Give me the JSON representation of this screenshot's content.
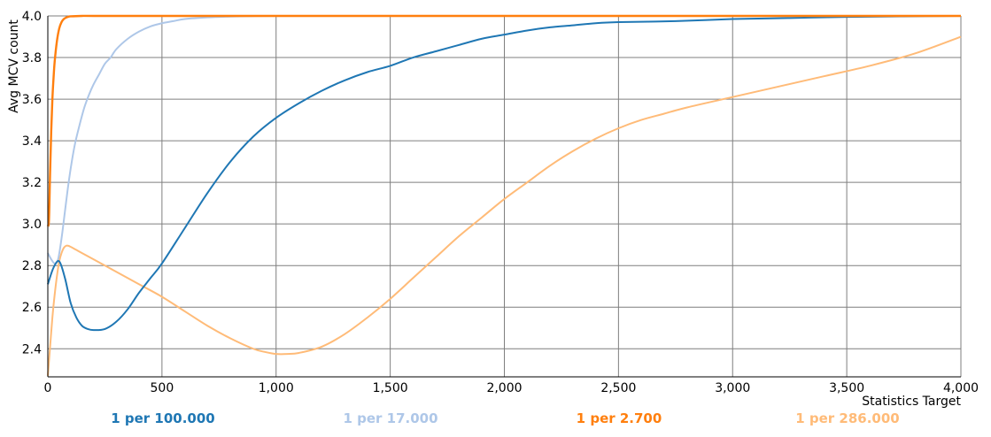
{
  "chart_data": {
    "type": "line",
    "xlabel": "Statistics Target",
    "ylabel": "Avg MCV count",
    "xlim": [
      0,
      4000
    ],
    "ylim": [
      2.265,
      4.0
    ],
    "x_ticks": [
      0,
      500,
      1000,
      1500,
      2000,
      2500,
      3000,
      3500,
      4000
    ],
    "x_tick_labels": [
      "0",
      "500",
      "1,000",
      "1,500",
      "2,000",
      "2,500",
      "3,000",
      "3,500",
      "4,000"
    ],
    "y_ticks": [
      2.4,
      2.6,
      2.8,
      3.0,
      3.2,
      3.4,
      3.6,
      3.8,
      4.0
    ],
    "y_tick_labels": [
      "2.4",
      "2.6",
      "2.8",
      "3.0",
      "3.2",
      "3.4",
      "3.6",
      "3.8",
      "4.0"
    ],
    "grid": true,
    "legend_position": "bottom",
    "series": [
      {
        "name": "1 per 100.000",
        "color": "#1f77b4",
        "x": [
          0,
          25,
          50,
          75,
          100,
          125,
          150,
          175,
          200,
          250,
          300,
          350,
          400,
          450,
          500,
          600,
          700,
          800,
          900,
          1000,
          1100,
          1200,
          1300,
          1400,
          1500,
          1600,
          1700,
          1800,
          1900,
          2000,
          2100,
          2200,
          2300,
          2400,
          2500,
          2750,
          3000,
          3250,
          3500,
          3750,
          4000
        ],
        "y": [
          2.71,
          2.79,
          2.82,
          2.74,
          2.62,
          2.55,
          2.51,
          2.495,
          2.49,
          2.495,
          2.53,
          2.59,
          2.67,
          2.74,
          2.81,
          2.98,
          3.15,
          3.3,
          3.42,
          3.51,
          3.58,
          3.64,
          3.69,
          3.73,
          3.76,
          3.8,
          3.83,
          3.86,
          3.89,
          3.91,
          3.93,
          3.945,
          3.955,
          3.965,
          3.97,
          3.975,
          3.985,
          3.99,
          3.995,
          3.998,
          4.0
        ]
      },
      {
        "name": "1 per 17.000",
        "color": "#aec7e8",
        "x": [
          0,
          15,
          30,
          45,
          60,
          75,
          90,
          105,
          120,
          140,
          160,
          180,
          200,
          225,
          250,
          275,
          300,
          350,
          400,
          450,
          500,
          550,
          600,
          700,
          800,
          900,
          1000,
          1500,
          2000,
          3000,
          4000
        ],
        "y": [
          2.86,
          2.83,
          2.81,
          2.83,
          2.93,
          3.06,
          3.19,
          3.3,
          3.39,
          3.48,
          3.56,
          3.62,
          3.67,
          3.72,
          3.77,
          3.8,
          3.84,
          3.89,
          3.925,
          3.95,
          3.965,
          3.975,
          3.985,
          3.993,
          3.997,
          3.999,
          4.0,
          4.0,
          4.0,
          4.0,
          4.0
        ]
      },
      {
        "name": "1 per 2.700",
        "color": "#ff7f0e",
        "x": [
          0,
          5,
          10,
          15,
          20,
          25,
          30,
          40,
          50,
          60,
          70,
          80,
          90,
          100,
          150,
          200,
          500,
          1000,
          2000,
          3000,
          4000
        ],
        "y": [
          2.99,
          3.02,
          3.25,
          3.45,
          3.6,
          3.7,
          3.78,
          3.88,
          3.94,
          3.97,
          3.985,
          3.992,
          3.996,
          3.998,
          4.0,
          4.0,
          4.0,
          4.0,
          4.0,
          4.0,
          4.0
        ]
      },
      {
        "name": "1 per 286.000",
        "color": "#ffbb78",
        "x": [
          0,
          10,
          20,
          30,
          40,
          50,
          60,
          70,
          80,
          90,
          100,
          125,
          150,
          200,
          300,
          400,
          500,
          600,
          700,
          800,
          900,
          950,
          1000,
          1050,
          1100,
          1200,
          1300,
          1400,
          1500,
          1600,
          1700,
          1800,
          1900,
          2000,
          2100,
          2200,
          2300,
          2400,
          2500,
          2600,
          2700,
          2800,
          3000,
          3200,
          3400,
          3600,
          3800,
          4000
        ],
        "y": [
          2.27,
          2.41,
          2.55,
          2.66,
          2.75,
          2.82,
          2.86,
          2.885,
          2.895,
          2.895,
          2.89,
          2.875,
          2.86,
          2.83,
          2.77,
          2.71,
          2.65,
          2.58,
          2.51,
          2.45,
          2.4,
          2.385,
          2.375,
          2.375,
          2.38,
          2.41,
          2.47,
          2.55,
          2.64,
          2.74,
          2.84,
          2.94,
          3.03,
          3.12,
          3.2,
          3.28,
          3.35,
          3.41,
          3.46,
          3.5,
          3.53,
          3.56,
          3.61,
          3.66,
          3.71,
          3.76,
          3.82,
          3.9
        ]
      }
    ]
  }
}
